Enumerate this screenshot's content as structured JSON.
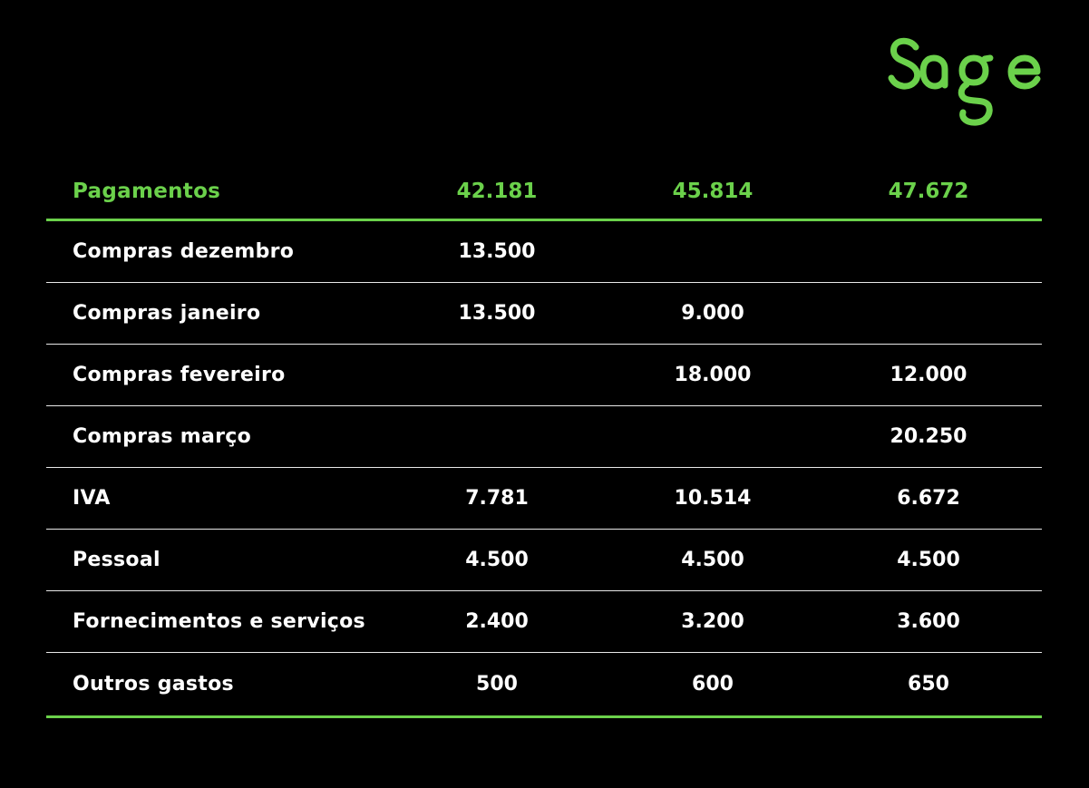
{
  "brand": {
    "logo_text": "Sage",
    "accent_color": "#6bd14b",
    "background_color": "#000000"
  },
  "table": {
    "header": {
      "label": "Pagamentos",
      "values": [
        "42.181",
        "45.814",
        "47.672"
      ]
    },
    "rows": [
      {
        "label": "Compras dezembro",
        "values": [
          "13.500",
          "",
          ""
        ]
      },
      {
        "label": "Compras janeiro",
        "values": [
          "13.500",
          "9.000",
          ""
        ]
      },
      {
        "label": "Compras fevereiro",
        "values": [
          "",
          "18.000",
          "12.000"
        ]
      },
      {
        "label": "Compras março",
        "values": [
          "",
          "",
          "20.250"
        ]
      },
      {
        "label": "IVA",
        "values": [
          "7.781",
          "10.514",
          "6.672"
        ]
      },
      {
        "label": "Pessoal",
        "values": [
          "4.500",
          "4.500",
          "4.500"
        ]
      },
      {
        "label": "Fornecimentos e serviços",
        "values": [
          "2.400",
          "3.200",
          "3.600"
        ]
      },
      {
        "label": "Outros gastos",
        "values": [
          "500",
          "600",
          "650"
        ]
      }
    ]
  }
}
